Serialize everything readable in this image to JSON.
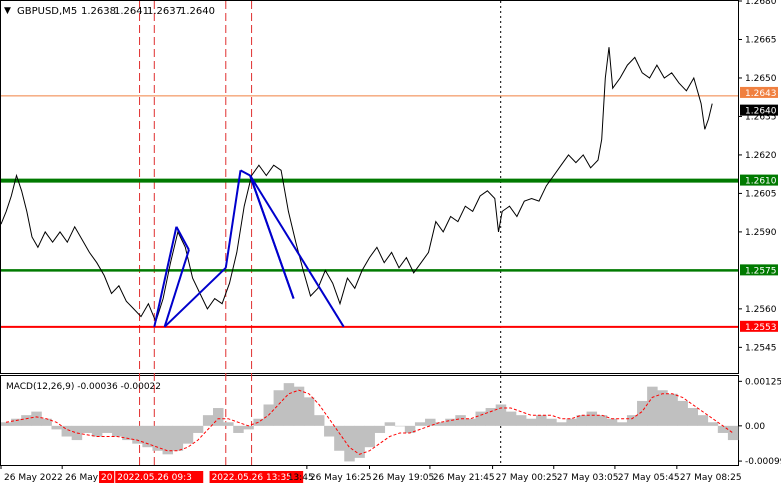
{
  "header": {
    "arrow": "▼",
    "symbol": "GBPUSD,M5",
    "ohlc": [
      "1.2638",
      "1.2641",
      "1.2637",
      "1.2640"
    ]
  },
  "macd_label": "MACD(12,26,9) -0.00036 -0.00022",
  "colors": {
    "price_line": "#000000",
    "zigzag": "#0000cc",
    "green_level": "#007a00",
    "red_level": "#ff0000",
    "orange_level": "#f08040",
    "macd_hist": "#c0c0c0",
    "macd_signal": "#ff0000",
    "axis_text": "#000000",
    "red_time_bg": "#ff0000",
    "last_price_bg": "#000000"
  },
  "chart_data": [
    {
      "type": "line",
      "name": "GBPUSD,M5",
      "ylim": [
        1.2535,
        1.268
      ],
      "y_ticks": [
        "1.2680",
        "1.2665",
        "1.2650",
        "1.2635",
        "1.2620",
        "1.2605",
        "1.2590",
        "1.2560",
        "1.2545"
      ],
      "price": [
        [
          0,
          1.2593
        ],
        [
          0.007,
          1.2598
        ],
        [
          0.014,
          1.2604
        ],
        [
          0.021,
          1.2612
        ],
        [
          0.028,
          1.2606
        ],
        [
          0.035,
          1.2598
        ],
        [
          0.042,
          1.2588
        ],
        [
          0.05,
          1.2584
        ],
        [
          0.06,
          1.259
        ],
        [
          0.07,
          1.2586
        ],
        [
          0.08,
          1.259
        ],
        [
          0.09,
          1.2586
        ],
        [
          0.1,
          1.2592
        ],
        [
          0.11,
          1.2587
        ],
        [
          0.12,
          1.2582
        ],
        [
          0.13,
          1.2578
        ],
        [
          0.14,
          1.2573
        ],
        [
          0.15,
          1.2566
        ],
        [
          0.16,
          1.2569
        ],
        [
          0.17,
          1.2563
        ],
        [
          0.18,
          1.256
        ],
        [
          0.19,
          1.2557
        ],
        [
          0.2,
          1.2562
        ],
        [
          0.21,
          1.2555
        ],
        [
          0.22,
          1.2564
        ],
        [
          0.23,
          1.2578
        ],
        [
          0.24,
          1.259
        ],
        [
          0.25,
          1.2584
        ],
        [
          0.26,
          1.2572
        ],
        [
          0.27,
          1.2566
        ],
        [
          0.28,
          1.256
        ],
        [
          0.29,
          1.2564
        ],
        [
          0.3,
          1.2562
        ],
        [
          0.31,
          1.257
        ],
        [
          0.32,
          1.2582
        ],
        [
          0.33,
          1.26
        ],
        [
          0.34,
          1.2612
        ],
        [
          0.35,
          1.2616
        ],
        [
          0.36,
          1.2612
        ],
        [
          0.37,
          1.2616
        ],
        [
          0.38,
          1.2614
        ],
        [
          0.39,
          1.2598
        ],
        [
          0.4,
          1.2586
        ],
        [
          0.41,
          1.2575
        ],
        [
          0.42,
          1.2565
        ],
        [
          0.43,
          1.2568
        ],
        [
          0.44,
          1.2575
        ],
        [
          0.45,
          1.257
        ],
        [
          0.46,
          1.2562
        ],
        [
          0.47,
          1.2572
        ],
        [
          0.48,
          1.2568
        ],
        [
          0.49,
          1.2575
        ],
        [
          0.5,
          1.258
        ],
        [
          0.51,
          1.2584
        ],
        [
          0.52,
          1.2578
        ],
        [
          0.53,
          1.2582
        ],
        [
          0.54,
          1.2576
        ],
        [
          0.55,
          1.258
        ],
        [
          0.56,
          1.2574
        ],
        [
          0.57,
          1.2578
        ],
        [
          0.58,
          1.2582
        ],
        [
          0.59,
          1.2594
        ],
        [
          0.6,
          1.259
        ],
        [
          0.61,
          1.2596
        ],
        [
          0.62,
          1.2594
        ],
        [
          0.63,
          1.26
        ],
        [
          0.64,
          1.2598
        ],
        [
          0.65,
          1.2604
        ],
        [
          0.66,
          1.2606
        ],
        [
          0.67,
          1.2603
        ],
        [
          0.675,
          1.259
        ],
        [
          0.68,
          1.2598
        ],
        [
          0.69,
          1.26
        ],
        [
          0.7,
          1.2596
        ],
        [
          0.71,
          1.2602
        ],
        [
          0.72,
          1.2603
        ],
        [
          0.73,
          1.2602
        ],
        [
          0.74,
          1.2608
        ],
        [
          0.75,
          1.2612
        ],
        [
          0.76,
          1.2616
        ],
        [
          0.77,
          1.262
        ],
        [
          0.78,
          1.2617
        ],
        [
          0.79,
          1.262
        ],
        [
          0.8,
          1.2615
        ],
        [
          0.81,
          1.2618
        ],
        [
          0.815,
          1.2626
        ],
        [
          0.82,
          1.265
        ],
        [
          0.825,
          1.2662
        ],
        [
          0.83,
          1.2646
        ],
        [
          0.84,
          1.265
        ],
        [
          0.85,
          1.2655
        ],
        [
          0.86,
          1.2658
        ],
        [
          0.87,
          1.2652
        ],
        [
          0.88,
          1.265
        ],
        [
          0.89,
          1.2655
        ],
        [
          0.9,
          1.265
        ],
        [
          0.91,
          1.2652
        ],
        [
          0.92,
          1.2648
        ],
        [
          0.93,
          1.2645
        ],
        [
          0.94,
          1.265
        ],
        [
          0.95,
          1.264
        ],
        [
          0.955,
          1.263
        ],
        [
          0.96,
          1.2634
        ],
        [
          0.965,
          1.264
        ]
      ],
      "zigzag": [
        [
          0.208,
          1.2553
        ],
        [
          0.238,
          1.2592
        ],
        [
          0.255,
          1.2583
        ],
        [
          0.222,
          1.2553
        ],
        [
          0.305,
          1.2576
        ],
        [
          0.325,
          1.2614
        ],
        [
          0.338,
          1.2612
        ],
        [
          0.397,
          1.2564
        ],
        [
          0.338,
          1.2612
        ],
        [
          0.465,
          1.2553
        ]
      ],
      "levels": [
        {
          "value": 1.2643,
          "label": "1.2643",
          "color": "#f08040"
        },
        {
          "value": 1.264,
          "label": "1.2640",
          "color": "#000000"
        },
        {
          "value": 1.261,
          "label": "1.2610",
          "color": "#007a00"
        },
        {
          "value": 1.2575,
          "label": "1.2575",
          "color": "#007a00"
        },
        {
          "value": 1.2553,
          "label": "1.2553",
          "color": "#ff0000"
        }
      ],
      "vertical_markers": [
        {
          "x": 0.188,
          "color": "#e03030",
          "style": "dash"
        },
        {
          "x": 0.208,
          "color": "#e03030",
          "style": "dash"
        },
        {
          "x": 0.305,
          "color": "#e03030",
          "style": "dash"
        },
        {
          "x": 0.34,
          "color": "#e03030",
          "style": "dash"
        },
        {
          "x": 0.678,
          "color": "#000000",
          "style": "dot"
        }
      ]
    },
    {
      "type": "bar",
      "name": "MACD(12,26,9)",
      "ylim": [
        -0.0011,
        0.0014
      ],
      "y_ticks": [
        "0.00125",
        "0.00",
        "-0.00099"
      ],
      "histogram": [
        0.0001,
        0.0002,
        0.0003,
        0.0004,
        0.0002,
        -0.0001,
        -0.0003,
        -0.0004,
        -0.0002,
        -0.0003,
        -0.0002,
        -0.0003,
        -0.0004,
        -0.0005,
        -0.0006,
        -0.0007,
        -0.0008,
        -0.0007,
        -0.0005,
        -0.0002,
        0.0003,
        0.0005,
        0.0001,
        -0.0002,
        -0.0001,
        0.0002,
        0.0006,
        0.001,
        0.0012,
        0.0011,
        0.0008,
        0.0003,
        -0.0003,
        -0.0007,
        -0.001,
        -0.0009,
        -0.0006,
        -0.0002,
        0.0001,
        0.0,
        -0.0002,
        0.0001,
        0.0002,
        0.0001,
        0.0002,
        0.0003,
        0.0002,
        0.0004,
        0.0005,
        0.0006,
        0.0004,
        0.0003,
        0.0002,
        0.0003,
        0.0002,
        0.0001,
        0.0002,
        0.0003,
        0.0004,
        0.0003,
        0.0002,
        0.0001,
        0.0003,
        0.0007,
        0.0011,
        0.001,
        0.0009,
        0.0007,
        0.0005,
        0.0003,
        0.0001,
        -0.0002,
        -0.0004
      ],
      "signal": [
        0.0001,
        0.00015,
        0.0002,
        0.00025,
        0.0002,
        0.0001,
        -0.0001,
        -0.0002,
        -0.00025,
        -0.0003,
        -0.0003,
        -0.0003,
        -0.00035,
        -0.0004,
        -0.0005,
        -0.0006,
        -0.0007,
        -0.0007,
        -0.0006,
        -0.0004,
        -0.0001,
        0.0002,
        0.0002,
        0.0001,
        0.0,
        0.0001,
        0.0003,
        0.0006,
        0.0009,
        0.001,
        0.0009,
        0.0006,
        0.0002,
        -0.0002,
        -0.0006,
        -0.0008,
        -0.0007,
        -0.0005,
        -0.0003,
        -0.0002,
        -0.0002,
        -0.0001,
        0.0,
        0.0001,
        0.00015,
        0.0002,
        0.0002,
        0.0003,
        0.0004,
        0.0005,
        0.0005,
        0.0004,
        0.0003,
        0.0003,
        0.0003,
        0.0002,
        0.0002,
        0.0003,
        0.0003,
        0.0003,
        0.0002,
        0.0002,
        0.0002,
        0.0004,
        0.0008,
        0.0009,
        0.0009,
        0.0008,
        0.0006,
        0.0004,
        0.0002,
        0.0,
        -0.0002
      ]
    }
  ],
  "time_axis": {
    "labels": [
      {
        "text": "26 May 2022",
        "x": 0.0
      },
      {
        "text": "26 May",
        "x": 0.083
      },
      {
        "text": "26 May 16:25",
        "x": 0.415
      },
      {
        "text": "26 May 19:05",
        "x": 0.5
      },
      {
        "text": "26 May 21:45",
        "x": 0.582
      },
      {
        "text": "27 May 00:25",
        "x": 0.667
      },
      {
        "text": "27 May 03:05",
        "x": 0.75
      },
      {
        "text": "27 May 05:45",
        "x": 0.833
      },
      {
        "text": "27 May 08:25",
        "x": 0.917
      }
    ],
    "red_labels": [
      {
        "text": "20",
        "x": 0.133
      },
      {
        "text": "2022.05.26 09:3",
        "x": 0.155
      },
      {
        "text": "2022.05.26 13:35",
        "x": 0.283
      }
    ],
    "partial_label": {
      "text": "13:45",
      "x": 0.385
    }
  }
}
